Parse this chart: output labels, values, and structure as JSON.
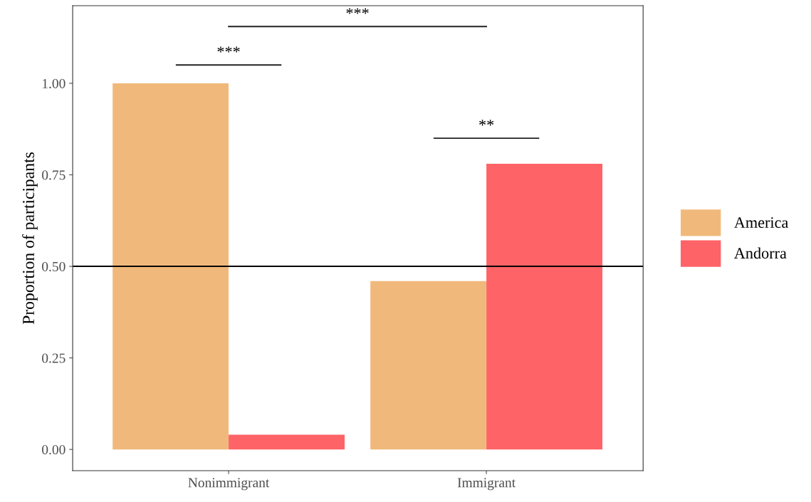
{
  "chart_data": {
    "type": "bar",
    "ylabel": "Proportion of participants",
    "categories": [
      "Nonimmigrant",
      "Immigrant"
    ],
    "series": [
      {
        "name": "America",
        "color": "#f0b97b",
        "values": [
          1.0,
          0.46
        ]
      },
      {
        "name": "Andorra",
        "color": "#fe6367",
        "values": [
          0.04,
          0.78
        ]
      }
    ],
    "ylim": [
      -0.058,
      1.212
    ],
    "yticks": [
      {
        "value": 0,
        "label": "0.00"
      },
      {
        "value": 0.25,
        "label": "0.25"
      },
      {
        "value": 0.5,
        "label": "0.50"
      },
      {
        "value": 0.75,
        "label": "0.75"
      },
      {
        "value": 1.0,
        "label": "1.00"
      }
    ],
    "ref_lines": [
      {
        "axis": "y",
        "value": 0.5,
        "color": "#000000"
      }
    ],
    "annotations": [
      "***",
      "**",
      "***"
    ],
    "legend": "right",
    "grid": false
  }
}
